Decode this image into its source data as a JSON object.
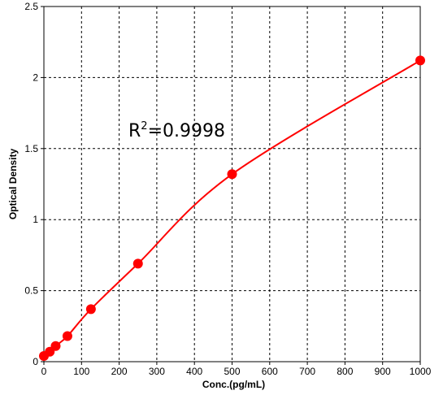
{
  "chart_data": {
    "type": "scatter",
    "title": "",
    "xlabel": "Conc.(pg/mL)",
    "ylabel": "Optical Density",
    "xlim": [
      0,
      1000
    ],
    "ylim": [
      0,
      2.5
    ],
    "x_ticks": [
      0,
      100,
      200,
      300,
      400,
      500,
      600,
      700,
      800,
      900,
      1000
    ],
    "y_ticks": [
      0,
      0.5,
      1,
      1.5,
      2,
      2.5
    ],
    "x_tick_labels": [
      "0",
      "100",
      "200",
      "300",
      "400",
      "500",
      "600",
      "700",
      "800",
      "900",
      "1000"
    ],
    "y_tick_labels": [
      "0",
      "0.5",
      "1",
      "1.5",
      "2",
      "2.5"
    ],
    "grid": true,
    "grid_style": "dashed",
    "points": [
      {
        "x": 0,
        "y": 0.04
      },
      {
        "x": 15.6,
        "y": 0.07
      },
      {
        "x": 31.25,
        "y": 0.11
      },
      {
        "x": 62.5,
        "y": 0.18
      },
      {
        "x": 125,
        "y": 0.37
      },
      {
        "x": 250,
        "y": 0.69
      },
      {
        "x": 500,
        "y": 1.32
      },
      {
        "x": 1000,
        "y": 2.12
      }
    ],
    "annotation": {
      "base": "R",
      "sup": "2",
      "rest": "=0.9998"
    },
    "colors": {
      "series": "#ff0000",
      "grid": "#000000",
      "frame": "#000000"
    }
  }
}
